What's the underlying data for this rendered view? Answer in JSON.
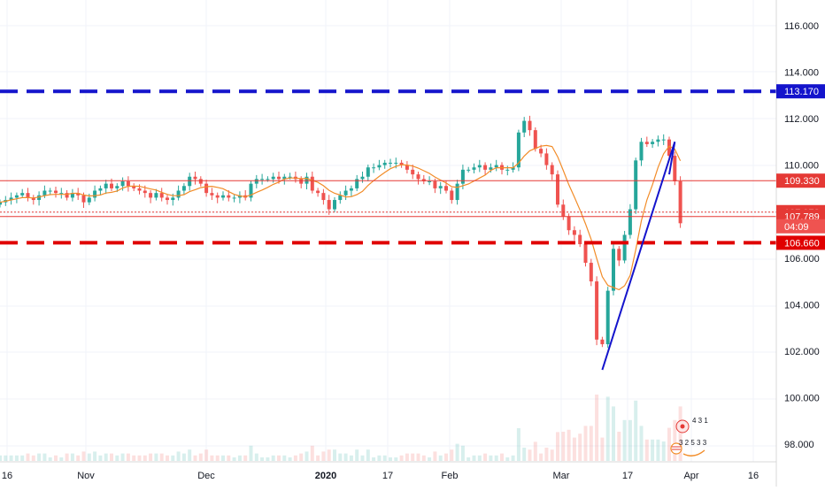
{
  "chart_data": {
    "type": "candlestick",
    "timeframe": "daily",
    "x_axis_labels": [
      "16",
      "Nov",
      "Dec",
      "2020",
      "17",
      "Feb",
      "Mar",
      "17",
      "Apr",
      "16"
    ],
    "y_axis_ticks": [
      "116.000",
      "114.000",
      "112.000",
      "110.000",
      "106.000",
      "104.000",
      "102.000",
      "100.000",
      "98.000"
    ],
    "ylim": [
      97.3,
      117.2
    ],
    "horizontal_levels": [
      {
        "label": "113.170",
        "value": 113.17,
        "style": "dashed",
        "color": "#1414cc",
        "bg": "#1414cc"
      },
      {
        "label": "109.330",
        "value": 109.33,
        "style": "solid-thin",
        "color": "#e53935",
        "bg": "#e53935"
      },
      {
        "label": "107.978",
        "value": 107.978,
        "style": "dotted",
        "color": "#e53935",
        "bg": "#e53935"
      },
      {
        "label": "107.789",
        "value": 107.789,
        "style": "solid-thin",
        "color": "#e53935",
        "bg": "#e53935"
      },
      {
        "label": "106.660",
        "value": 106.66,
        "style": "dashed",
        "color": "#e00000",
        "bg": "#e00000"
      }
    ],
    "countdown": "04:09",
    "closes": [
      108.4,
      108.5,
      108.6,
      108.7,
      108.8,
      108.6,
      108.5,
      108.7,
      108.9,
      108.9,
      108.8,
      108.8,
      108.6,
      108.8,
      108.7,
      108.4,
      108.6,
      108.9,
      109.0,
      109.2,
      109.0,
      109.1,
      109.3,
      109.1,
      109.0,
      108.9,
      108.8,
      108.6,
      108.8,
      108.6,
      108.5,
      108.6,
      108.9,
      109.1,
      109.5,
      109.4,
      109.2,
      108.8,
      108.7,
      108.6,
      108.7,
      108.6,
      108.6,
      108.7,
      108.6,
      109.2,
      109.4,
      109.4,
      109.4,
      109.5,
      109.4,
      109.5,
      109.5,
      109.4,
      109.2,
      109.5,
      108.9,
      108.8,
      108.5,
      108.1,
      108.5,
      108.7,
      108.9,
      109.0,
      109.4,
      109.5,
      109.9,
      109.9,
      110.0,
      110.1,
      110.1,
      110.1,
      110.0,
      109.8,
      109.6,
      109.4,
      109.3,
      109.3,
      109.0,
      109.1,
      108.9,
      108.5,
      109.2,
      109.8,
      109.8,
      109.9,
      110.0,
      109.8,
      109.9,
      110.0,
      109.8,
      109.8,
      109.9,
      111.4,
      111.9,
      111.5,
      110.7,
      110.5,
      110.0,
      109.6,
      108.3,
      107.8,
      107.2,
      107.0,
      106.6,
      105.8,
      105.0,
      102.5,
      102.3,
      104.6,
      106.4,
      105.9,
      107.0,
      108.1,
      110.2,
      111.0,
      110.9,
      111.0,
      111.1,
      111.1,
      110.4,
      109.3,
      107.5
    ],
    "trendline_points": [
      {
        "date": "day 108",
        "price": 101.2
      },
      {
        "date": "day 121",
        "price": 111.0
      },
      {
        "date": "day 120",
        "price": 109.6
      }
    ],
    "moving_average": {
      "name": "",
      "color": "#f28c28"
    }
  }
}
